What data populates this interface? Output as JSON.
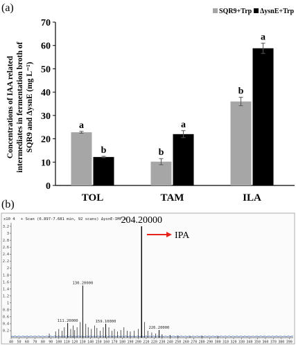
{
  "panel_a": {
    "label": "(a)"
  },
  "panel_b": {
    "label": "(b)"
  },
  "chart_data": [
    {
      "type": "bar",
      "panel": "(a)",
      "ylabel_lines": [
        "Concentrations of IAA related",
        "intermediates in fermentation broth of",
        "SQR9 and ΔysnE (mg L⁻¹)"
      ],
      "categories": [
        "TOL",
        "TAM",
        "ILA"
      ],
      "ylim": [
        0,
        70
      ],
      "yticks": [
        "0",
        "10",
        "20",
        "30",
        "40",
        "50",
        "60",
        "70"
      ],
      "legend_position": "top-right",
      "series": [
        {
          "name": "SQR9+Trp",
          "color": "#a6a6a6",
          "values": [
            22.8,
            10.2,
            36.0
          ],
          "errors": [
            0.4,
            1.3,
            1.8
          ],
          "labels": [
            "a",
            "b",
            "b"
          ]
        },
        {
          "name": "ΔysnE+Trp",
          "color": "#000000",
          "values": [
            12.2,
            22.0,
            58.8
          ],
          "errors": [
            0.3,
            1.5,
            2.2
          ],
          "labels": [
            "b",
            "a",
            "a"
          ]
        }
      ]
    },
    {
      "type": "line",
      "panel": "(b)",
      "header": "+ Scan (6.897-7.681 min, 92 scans) ΔysnE-IMP.d",
      "y_scale_label": "x10 4",
      "xlim": [
        40,
        395
      ],
      "xticks": [
        40,
        50,
        60,
        70,
        80,
        90,
        100,
        110,
        120,
        130,
        140,
        150,
        160,
        170,
        180,
        190,
        200,
        210,
        220,
        230,
        240,
        250,
        260,
        270,
        280,
        290,
        300,
        310,
        320,
        330,
        340,
        350,
        360,
        370,
        380,
        390
      ],
      "ylim": [
        0,
        3.3
      ],
      "yticks": [
        "0.2",
        "0.4",
        "0.6",
        "0.8",
        "1",
        "1.2",
        "1.4",
        "1.6",
        "1.8",
        "2",
        "2.2",
        "2.4",
        "2.6",
        "2.8",
        "3",
        "3.2"
      ],
      "peaks": [
        {
          "mz": 204.2,
          "intensity": 3.2,
          "label": "204.20000"
        },
        {
          "mz": 130.2,
          "intensity": 1.5,
          "label": "130.20000"
        },
        {
          "mz": 111.2,
          "intensity": 0.42,
          "label": "111.20000"
        },
        {
          "mz": 159.1,
          "intensity": 0.4,
          "label": "159.10000"
        },
        {
          "mz": 226.2,
          "intensity": 0.22,
          "label": "226.20000"
        }
      ],
      "minor_peaks": [
        [
          88,
          0.12
        ],
        [
          96,
          0.18
        ],
        [
          100,
          0.25
        ],
        [
          104,
          0.2
        ],
        [
          107,
          0.3
        ],
        [
          115,
          0.25
        ],
        [
          118,
          0.35
        ],
        [
          120,
          0.22
        ],
        [
          123,
          0.3
        ],
        [
          127,
          0.45
        ],
        [
          134,
          0.4
        ],
        [
          137,
          0.3
        ],
        [
          141,
          0.25
        ],
        [
          145,
          0.35
        ],
        [
          148,
          0.28
        ],
        [
          152,
          0.2
        ],
        [
          156,
          0.3
        ],
        [
          163,
          0.3
        ],
        [
          167,
          0.2
        ],
        [
          170,
          0.25
        ],
        [
          174,
          0.18
        ],
        [
          178,
          0.22
        ],
        [
          182,
          0.3
        ],
        [
          186,
          0.2
        ],
        [
          190,
          0.18
        ],
        [
          195,
          0.2
        ],
        [
          200,
          0.25
        ],
        [
          208,
          0.45
        ],
        [
          212,
          0.2
        ],
        [
          217,
          0.15
        ],
        [
          222,
          0.12
        ],
        [
          230,
          0.1
        ],
        [
          240,
          0.08
        ],
        [
          250,
          0.06
        ],
        [
          265,
          0.05
        ],
        [
          280,
          0.06
        ],
        [
          300,
          0.05
        ]
      ],
      "annotation": {
        "text": "IPA",
        "arrow_color": "#e8211b"
      }
    }
  ]
}
